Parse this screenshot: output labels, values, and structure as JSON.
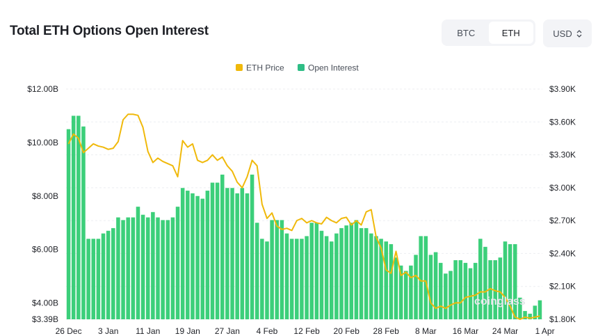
{
  "header": {
    "title": "Total ETH Options Open Interest",
    "asset_toggle": [
      {
        "label": "BTC",
        "active": false
      },
      {
        "label": "ETH",
        "active": true
      }
    ],
    "currency": "USD"
  },
  "watermark": "coinglass",
  "chart_data": {
    "type": "bar+line",
    "legend": [
      "ETH Price",
      "Open Interest"
    ],
    "colors": {
      "price": "#f0b90b",
      "oi": "#2ebd85",
      "oi_fill": "#3ccf7a",
      "grid": "#eceef1"
    },
    "legend_position": "top-center",
    "y_left": {
      "ticks": [
        "$12.00B",
        "$10.00B",
        "$8.00B",
        "$6.00B",
        "$4.00B",
        "$3.39B"
      ],
      "tick_values": [
        12.0,
        10.0,
        8.0,
        6.0,
        4.0,
        3.39
      ],
      "min": 3.39,
      "max": 12.0,
      "unit": "B"
    },
    "y_right": {
      "ticks": [
        "$3.90K",
        "$3.60K",
        "$3.30K",
        "$3.00K",
        "$2.70K",
        "$2.40K",
        "$2.10K",
        "$1.80K"
      ],
      "tick_values": [
        3.9,
        3.6,
        3.3,
        3.0,
        2.7,
        2.4,
        2.1,
        1.8
      ],
      "min": 1.8,
      "max": 3.9,
      "unit": "K"
    },
    "x_labels": [
      "26 Dec",
      "3 Jan",
      "11 Jan",
      "19 Jan",
      "27 Jan",
      "4 Feb",
      "12 Feb",
      "20 Feb",
      "28 Feb",
      "8 Mar",
      "16 Mar",
      "24 Mar",
      "1 Apr"
    ],
    "x_label_index": [
      0,
      8,
      16,
      24,
      32,
      40,
      48,
      56,
      64,
      72,
      80,
      88,
      96
    ],
    "open_interest_billions": [
      10.5,
      11.0,
      11.0,
      10.6,
      6.4,
      6.4,
      6.4,
      6.6,
      6.7,
      6.8,
      7.2,
      7.1,
      7.2,
      7.2,
      7.6,
      7.3,
      7.2,
      7.4,
      7.2,
      7.1,
      7.1,
      7.2,
      7.6,
      8.3,
      8.2,
      8.1,
      8.0,
      7.9,
      8.2,
      8.5,
      8.5,
      8.8,
      8.3,
      8.3,
      8.1,
      8.3,
      8.1,
      8.8,
      7.0,
      6.4,
      6.3,
      7.1,
      7.1,
      7.1,
      6.6,
      6.4,
      6.4,
      6.4,
      6.5,
      7.0,
      7.0,
      6.7,
      6.5,
      6.3,
      6.6,
      6.8,
      6.9,
      7.0,
      7.1,
      6.8,
      6.8,
      6.6,
      6.5,
      6.4,
      6.3,
      6.2,
      5.7,
      5.4,
      5.2,
      5.4,
      5.8,
      6.5,
      6.5,
      5.8,
      5.9,
      5.5,
      5.1,
      5.2,
      5.6,
      5.6,
      5.5,
      5.3,
      5.5,
      6.4,
      6.1,
      5.6,
      5.6,
      5.7,
      6.3,
      6.2,
      6.2,
      4.2,
      3.7,
      3.6,
      3.9,
      4.1
    ],
    "eth_price_thousands": [
      3.4,
      3.49,
      3.45,
      3.32,
      3.36,
      3.4,
      3.38,
      3.37,
      3.35,
      3.36,
      3.42,
      3.62,
      3.67,
      3.67,
      3.66,
      3.55,
      3.33,
      3.23,
      3.27,
      3.24,
      3.22,
      3.2,
      3.1,
      3.43,
      3.37,
      3.4,
      3.25,
      3.23,
      3.25,
      3.3,
      3.25,
      3.28,
      3.2,
      3.15,
      3.05,
      3.0,
      3.1,
      3.25,
      3.2,
      2.85,
      2.72,
      2.77,
      2.65,
      2.62,
      2.63,
      2.61,
      2.7,
      2.72,
      2.68,
      2.7,
      2.68,
      2.67,
      2.73,
      2.7,
      2.68,
      2.72,
      2.73,
      2.66,
      2.7,
      2.66,
      2.78,
      2.8,
      2.55,
      2.45,
      2.25,
      2.22,
      2.42,
      2.2,
      2.23,
      2.18,
      2.2,
      2.15,
      2.15,
      1.95,
      1.9,
      1.92,
      1.9,
      1.93,
      1.95,
      1.95,
      2.0,
      2.01,
      2.02,
      2.05,
      2.05,
      2.08,
      2.06,
      2.05,
      2.0,
      1.92,
      1.82,
      1.8,
      1.82,
      1.81,
      1.82,
      1.83
    ]
  }
}
